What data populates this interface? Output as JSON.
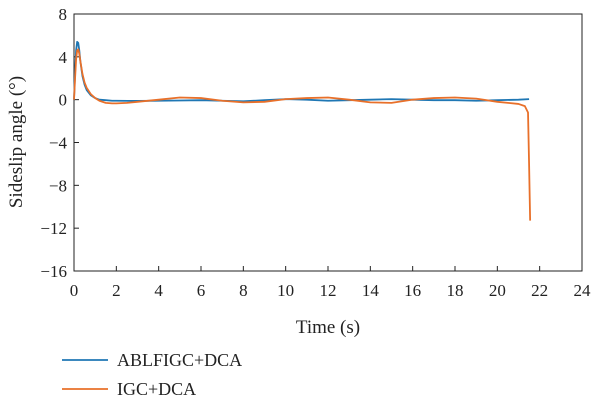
{
  "chart_data": {
    "type": "line",
    "title": "",
    "xlabel": "Time (s)",
    "ylabel": "Sideslip angle (°)",
    "xlim": [
      0,
      24
    ],
    "ylim": [
      -16,
      8
    ],
    "xticks": [
      0,
      2,
      4,
      6,
      8,
      10,
      12,
      14,
      16,
      18,
      20,
      22,
      24
    ],
    "yticks": [
      8,
      4,
      0,
      -4,
      -8,
      -12,
      -16
    ],
    "xtick_labels": [
      "0",
      "2",
      "4",
      "6",
      "8",
      "10",
      "12",
      "14",
      "16",
      "18",
      "20",
      "22",
      "24"
    ],
    "ytick_labels": [
      "8",
      "4",
      "0",
      "−4",
      "−8",
      "−12",
      "−16"
    ],
    "grid": false,
    "legend_position": "bottom-left",
    "series": [
      {
        "name": "ABLFIGC+DCA",
        "color": "#1f77b4",
        "x": [
          0,
          0.05,
          0.1,
          0.15,
          0.2,
          0.25,
          0.3,
          0.4,
          0.5,
          0.6,
          0.8,
          1.0,
          1.2,
          1.5,
          1.8,
          2.0,
          3,
          4,
          5,
          6,
          7,
          8,
          9,
          10,
          11,
          12,
          13,
          14,
          15,
          16,
          17,
          18,
          19,
          20,
          21,
          21.5
        ],
        "y": [
          0,
          2.5,
          4.6,
          5.4,
          5.3,
          4.6,
          3.6,
          2.2,
          1.4,
          0.9,
          0.4,
          0.15,
          0.0,
          -0.05,
          -0.1,
          -0.1,
          -0.12,
          -0.1,
          -0.08,
          -0.05,
          -0.1,
          -0.15,
          -0.05,
          0.05,
          0.0,
          -0.1,
          -0.05,
          0.0,
          0.05,
          0.0,
          -0.05,
          -0.05,
          -0.1,
          -0.05,
          0.0,
          0.05
        ]
      },
      {
        "name": "IGC+DCA",
        "color": "#e8702a",
        "x": [
          0,
          0.05,
          0.1,
          0.15,
          0.2,
          0.25,
          0.3,
          0.4,
          0.5,
          0.6,
          0.8,
          1.0,
          1.2,
          1.5,
          1.8,
          2.0,
          2.5,
          3,
          4,
          5,
          6,
          7,
          8,
          9,
          10,
          11,
          12,
          13,
          14,
          15,
          16,
          17,
          18,
          19,
          20,
          20.5,
          21,
          21.3,
          21.45,
          21.5,
          21.55
        ],
        "y": [
          0,
          2.0,
          3.8,
          4.6,
          4.7,
          4.3,
          3.6,
          2.4,
          1.6,
          1.1,
          0.5,
          0.15,
          -0.1,
          -0.3,
          -0.35,
          -0.35,
          -0.3,
          -0.2,
          0.0,
          0.2,
          0.15,
          -0.1,
          -0.25,
          -0.2,
          0.05,
          0.15,
          0.2,
          0.0,
          -0.25,
          -0.3,
          0.0,
          0.15,
          0.2,
          0.1,
          -0.2,
          -0.3,
          -0.4,
          -0.6,
          -1.2,
          -6.0,
          -11.3
        ]
      }
    ]
  }
}
